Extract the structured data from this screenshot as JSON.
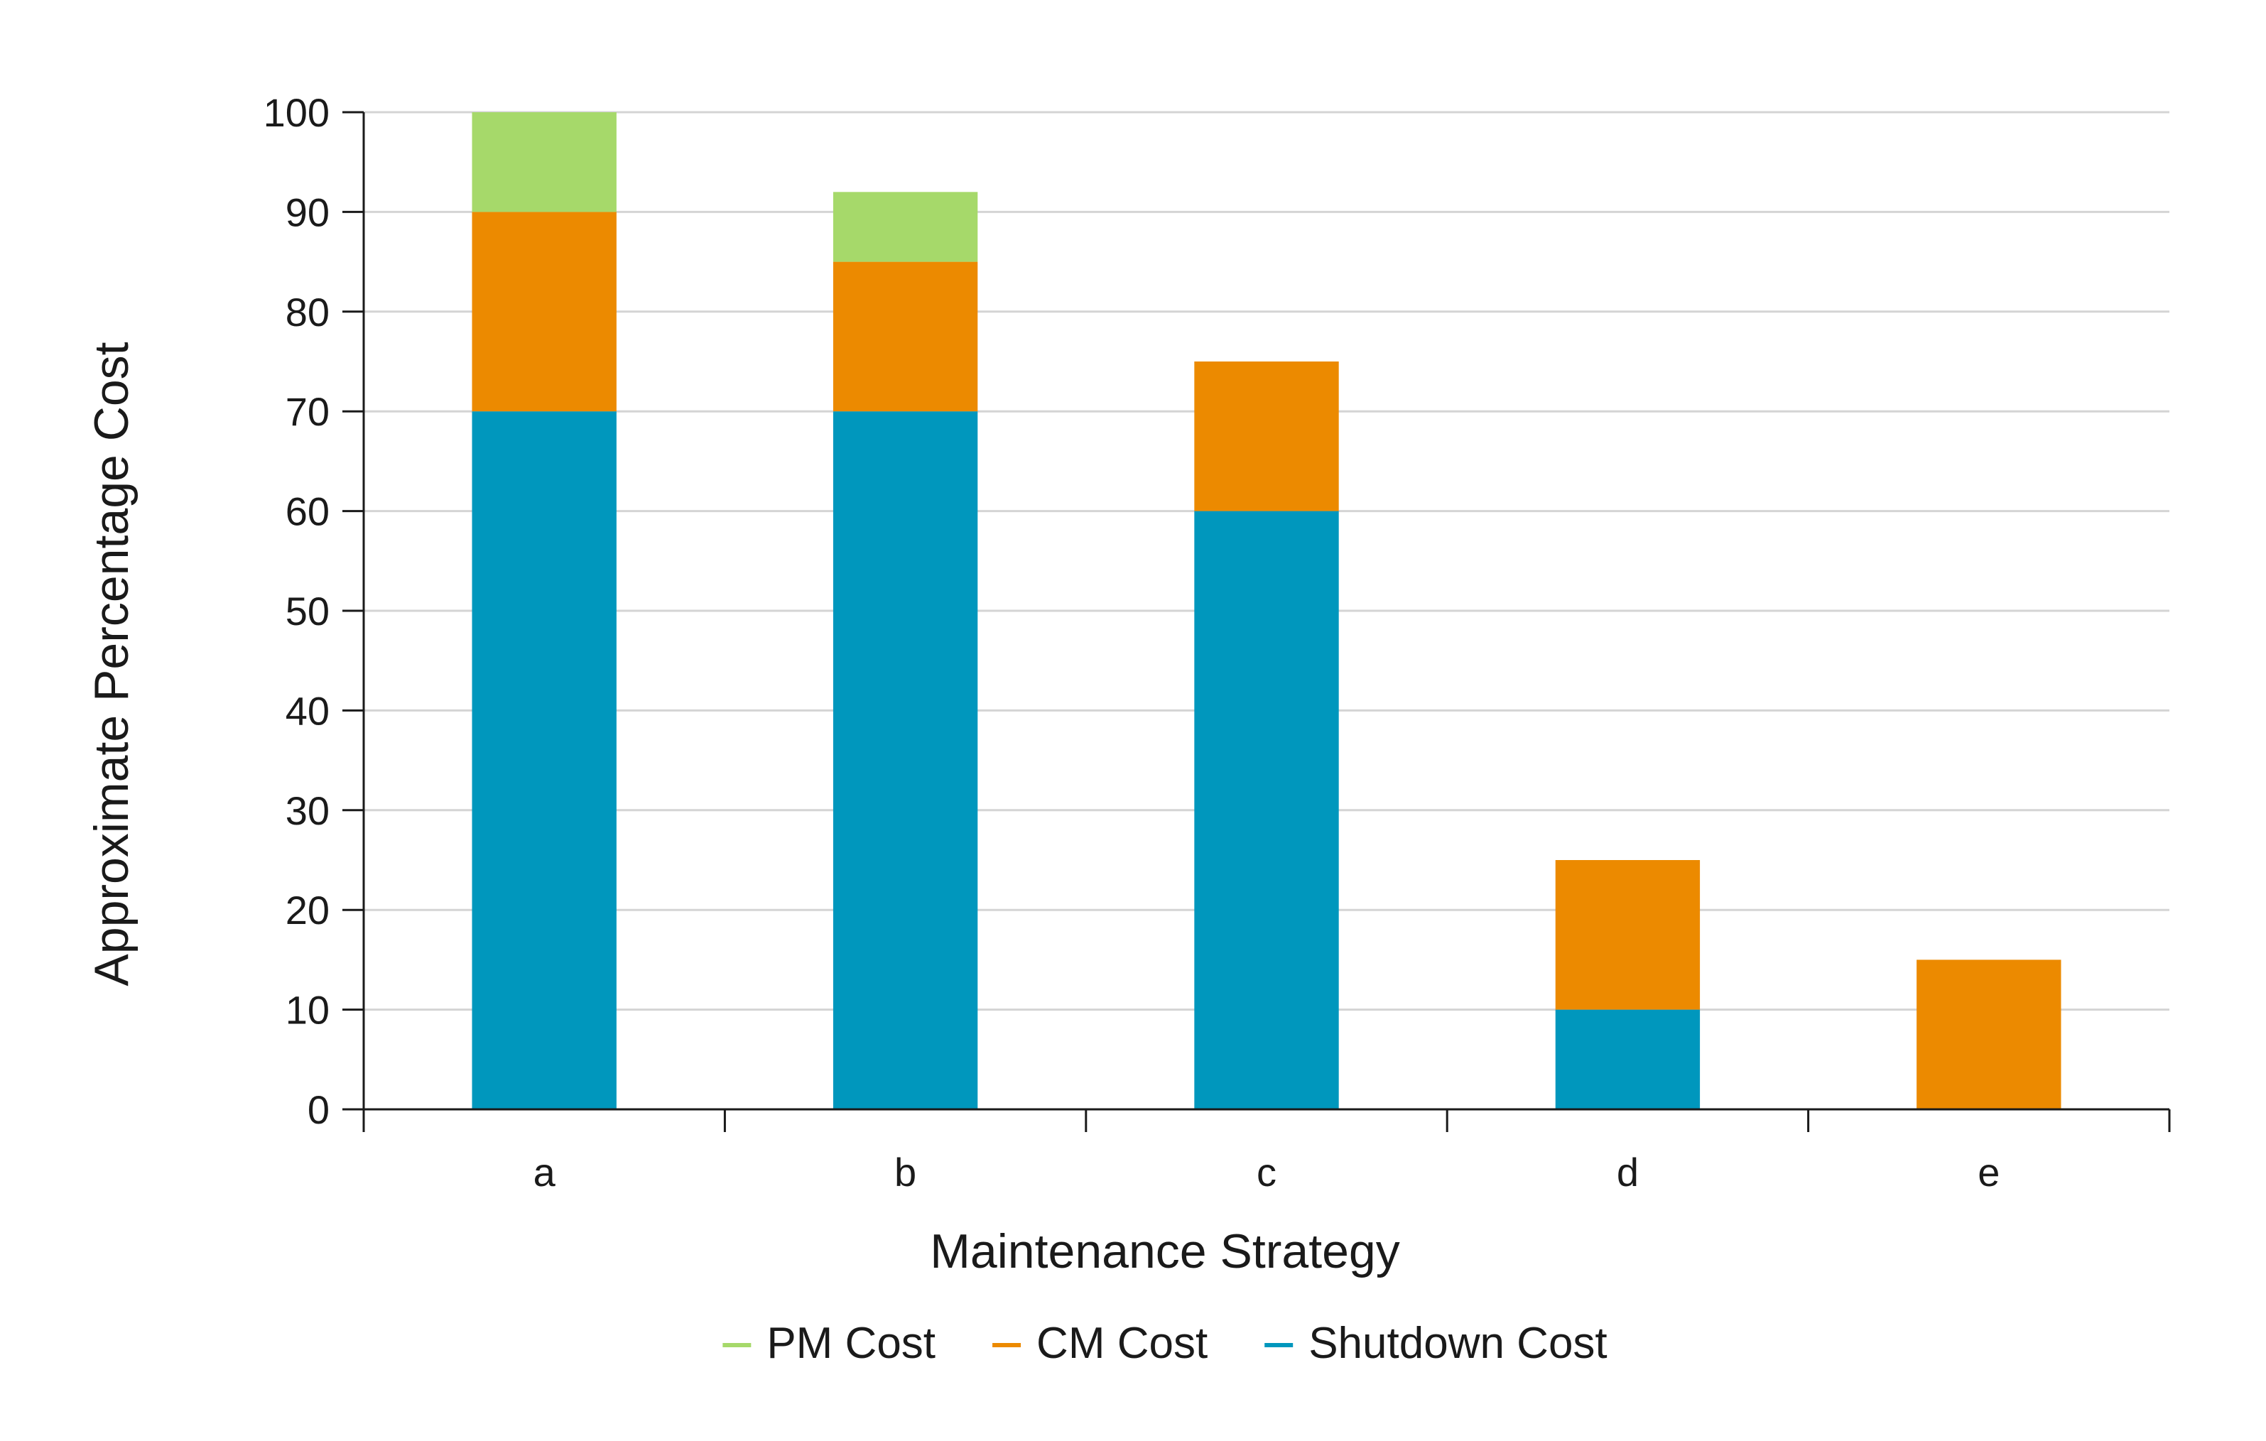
{
  "chart_data": {
    "type": "bar",
    "stacked": true,
    "categories": [
      "a",
      "b",
      "c",
      "d",
      "e"
    ],
    "series": [
      {
        "name": "Shutdown Cost",
        "color": "#0097bd",
        "values": [
          70,
          70,
          60,
          10,
          0
        ]
      },
      {
        "name": "CM Cost",
        "color": "#ec8a00",
        "values": [
          20,
          15,
          15,
          15,
          15
        ]
      },
      {
        "name": "PM Cost",
        "color": "#a6d96a",
        "values": [
          10,
          7,
          0,
          0,
          0
        ]
      }
    ],
    "xlabel": "Maintenance Strategy",
    "ylabel": "Approximate Percentage Cost",
    "ylim": [
      0,
      100
    ],
    "yticks": [
      0,
      10,
      20,
      30,
      40,
      50,
      60,
      70,
      80,
      90,
      100
    ],
    "grid": true,
    "legend": {
      "position": "bottom-center",
      "order": [
        "PM Cost",
        "CM Cost",
        "Shutdown Cost"
      ]
    }
  }
}
